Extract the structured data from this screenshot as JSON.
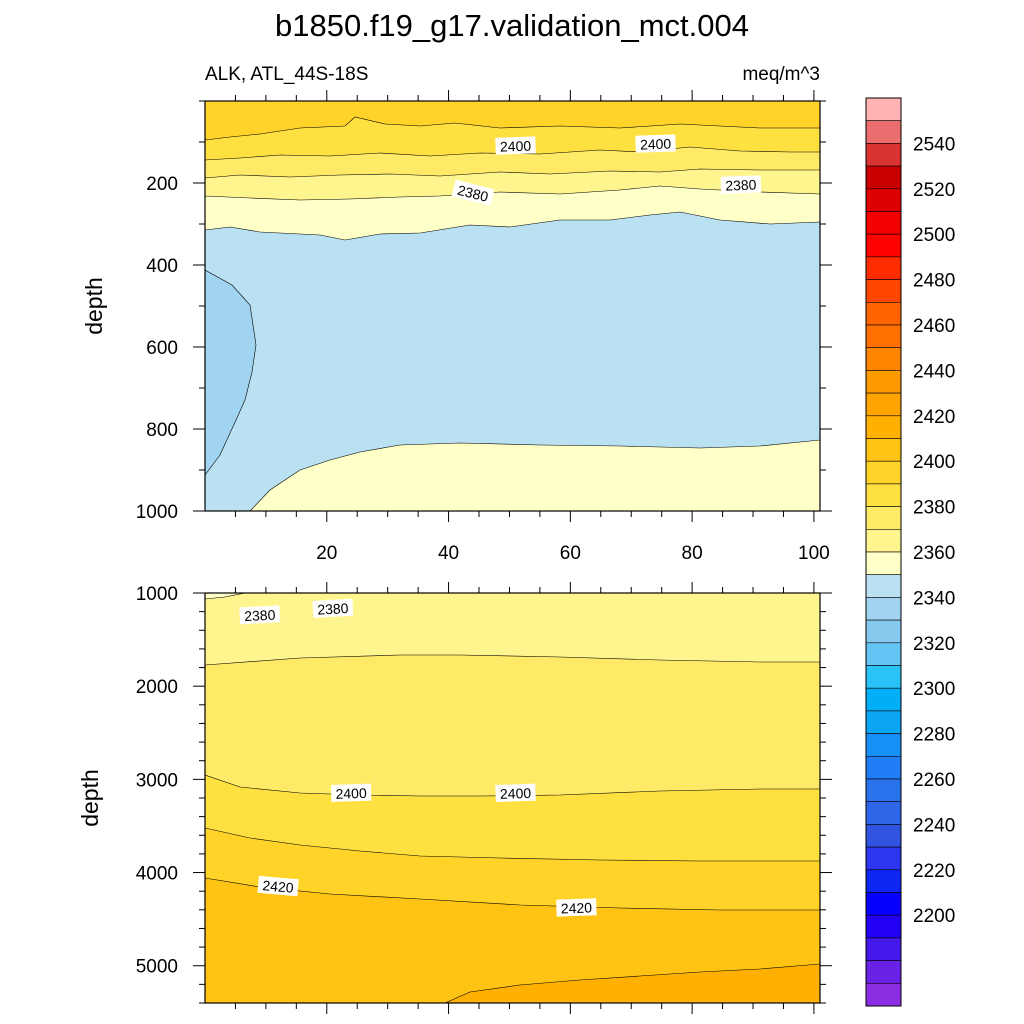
{
  "chart_data": [
    {
      "type": "contour",
      "panel": "upper",
      "title": "b1850.f19_g17.validation_mct.004",
      "left_string": "ALK, ATL_44S-18S",
      "right_string": "meq/m^3",
      "ylabel": "depth",
      "xlabel": "",
      "xlim": [
        0,
        101
      ],
      "ylim": [
        1000,
        0
      ],
      "x_ticks": [
        20,
        40,
        60,
        80,
        100
      ],
      "y_ticks": [
        200,
        400,
        600,
        800,
        1000
      ],
      "contour_labels": [
        {
          "text": "2400",
          "x": 51,
          "depth": 110
        },
        {
          "text": "2400",
          "x": 74,
          "depth": 105
        },
        {
          "text": "2380",
          "x": 44,
          "depth": 225
        },
        {
          "text": "2380",
          "x": 88,
          "depth": 205
        }
      ],
      "regions": [
        {
          "level": 2415,
          "depth_range": [
            0,
            95
          ]
        },
        {
          "level": 2405,
          "depth_range": [
            85,
            145
          ]
        },
        {
          "level": 2395,
          "depth_range": [
            145,
            170
          ]
        },
        {
          "level": 2385,
          "depth_range": [
            170,
            200
          ]
        },
        {
          "level": 2375,
          "depth_range": [
            200,
            315
          ]
        },
        {
          "level": 2365,
          "depth_range": [
            315,
            840
          ]
        },
        {
          "level": 2355,
          "note": "core near x=0-10, depth 420-900"
        },
        {
          "level": 2375,
          "depth_range": [
            840,
            1000
          ]
        }
      ]
    },
    {
      "type": "contour",
      "panel": "lower",
      "ylabel": "depth",
      "xlim": [
        0,
        101
      ],
      "ylim": [
        5400,
        1000
      ],
      "x_ticks": [
        20,
        40,
        60,
        80,
        100
      ],
      "y_ticks": [
        1000,
        2000,
        3000,
        4000,
        5000
      ],
      "contour_labels": [
        {
          "text": "2380",
          "x": 9,
          "depth": 1240
        },
        {
          "text": "2380",
          "x": 21,
          "depth": 1170
        },
        {
          "text": "2400",
          "x": 24,
          "depth": 3150
        },
        {
          "text": "2400",
          "x": 51,
          "depth": 3150
        },
        {
          "text": "2420",
          "x": 12,
          "depth": 4150
        },
        {
          "text": "2420",
          "x": 61,
          "depth": 4380
        }
      ],
      "regions": [
        {
          "level": 2385,
          "depth_range": [
            1000,
            1700
          ]
        },
        {
          "level": 2395,
          "depth_range": [
            1700,
            3000
          ]
        },
        {
          "level": 2405,
          "depth_range": [
            3000,
            3750
          ]
        },
        {
          "level": 2415,
          "depth_range": [
            3750,
            4150
          ]
        },
        {
          "level": 2425,
          "depth_range": [
            4150,
            5300
          ]
        },
        {
          "level": 2435,
          "depth_range": [
            5000,
            5400
          ]
        }
      ]
    }
  ],
  "colorbar": {
    "labels": [
      "2540",
      "2520",
      "2500",
      "2480",
      "2460",
      "2440",
      "2420",
      "2400",
      "2380",
      "2360",
      "2340",
      "2320",
      "2300",
      "2280",
      "2260",
      "2240",
      "2220",
      "2200"
    ],
    "colors": [
      "#FFB3B3",
      "#EB6E6E",
      "#DB3232",
      "#C90000",
      "#DE0000",
      "#F20000",
      "#FF0000",
      "#FF2C00",
      "#FF4700",
      "#FF6400",
      "#FF7000",
      "#FF8400",
      "#FF9900",
      "#FFA400",
      "#FFB000",
      "#FFC313",
      "#FFD328",
      "#FFE041",
      "#FFEA67",
      "#FFF58F",
      "#FFFFC8",
      "#BAE1F2",
      "#A1D4F1",
      "#87CAF0",
      "#64C4F3",
      "#2AC3F7",
      "#00AFF7",
      "#0BA5F5",
      "#168FF7",
      "#1F7EF5",
      "#2873EC",
      "#2D67E7",
      "#3054DF",
      "#2C35EF",
      "#0E26F2",
      "#0800FF",
      "#2200F3",
      "#4518EC",
      "#6A21E6",
      "#8B2DE0"
    ]
  },
  "fill_colors": {
    "2355": "#A1D4F1",
    "2365": "#BAE1F2",
    "2375": "#FFFFC8",
    "2385": "#FFF58F",
    "2395": "#FFEA67",
    "2405": "#FFE041",
    "2415": "#FFD328",
    "2425": "#FFC313",
    "2435": "#FFB000"
  }
}
